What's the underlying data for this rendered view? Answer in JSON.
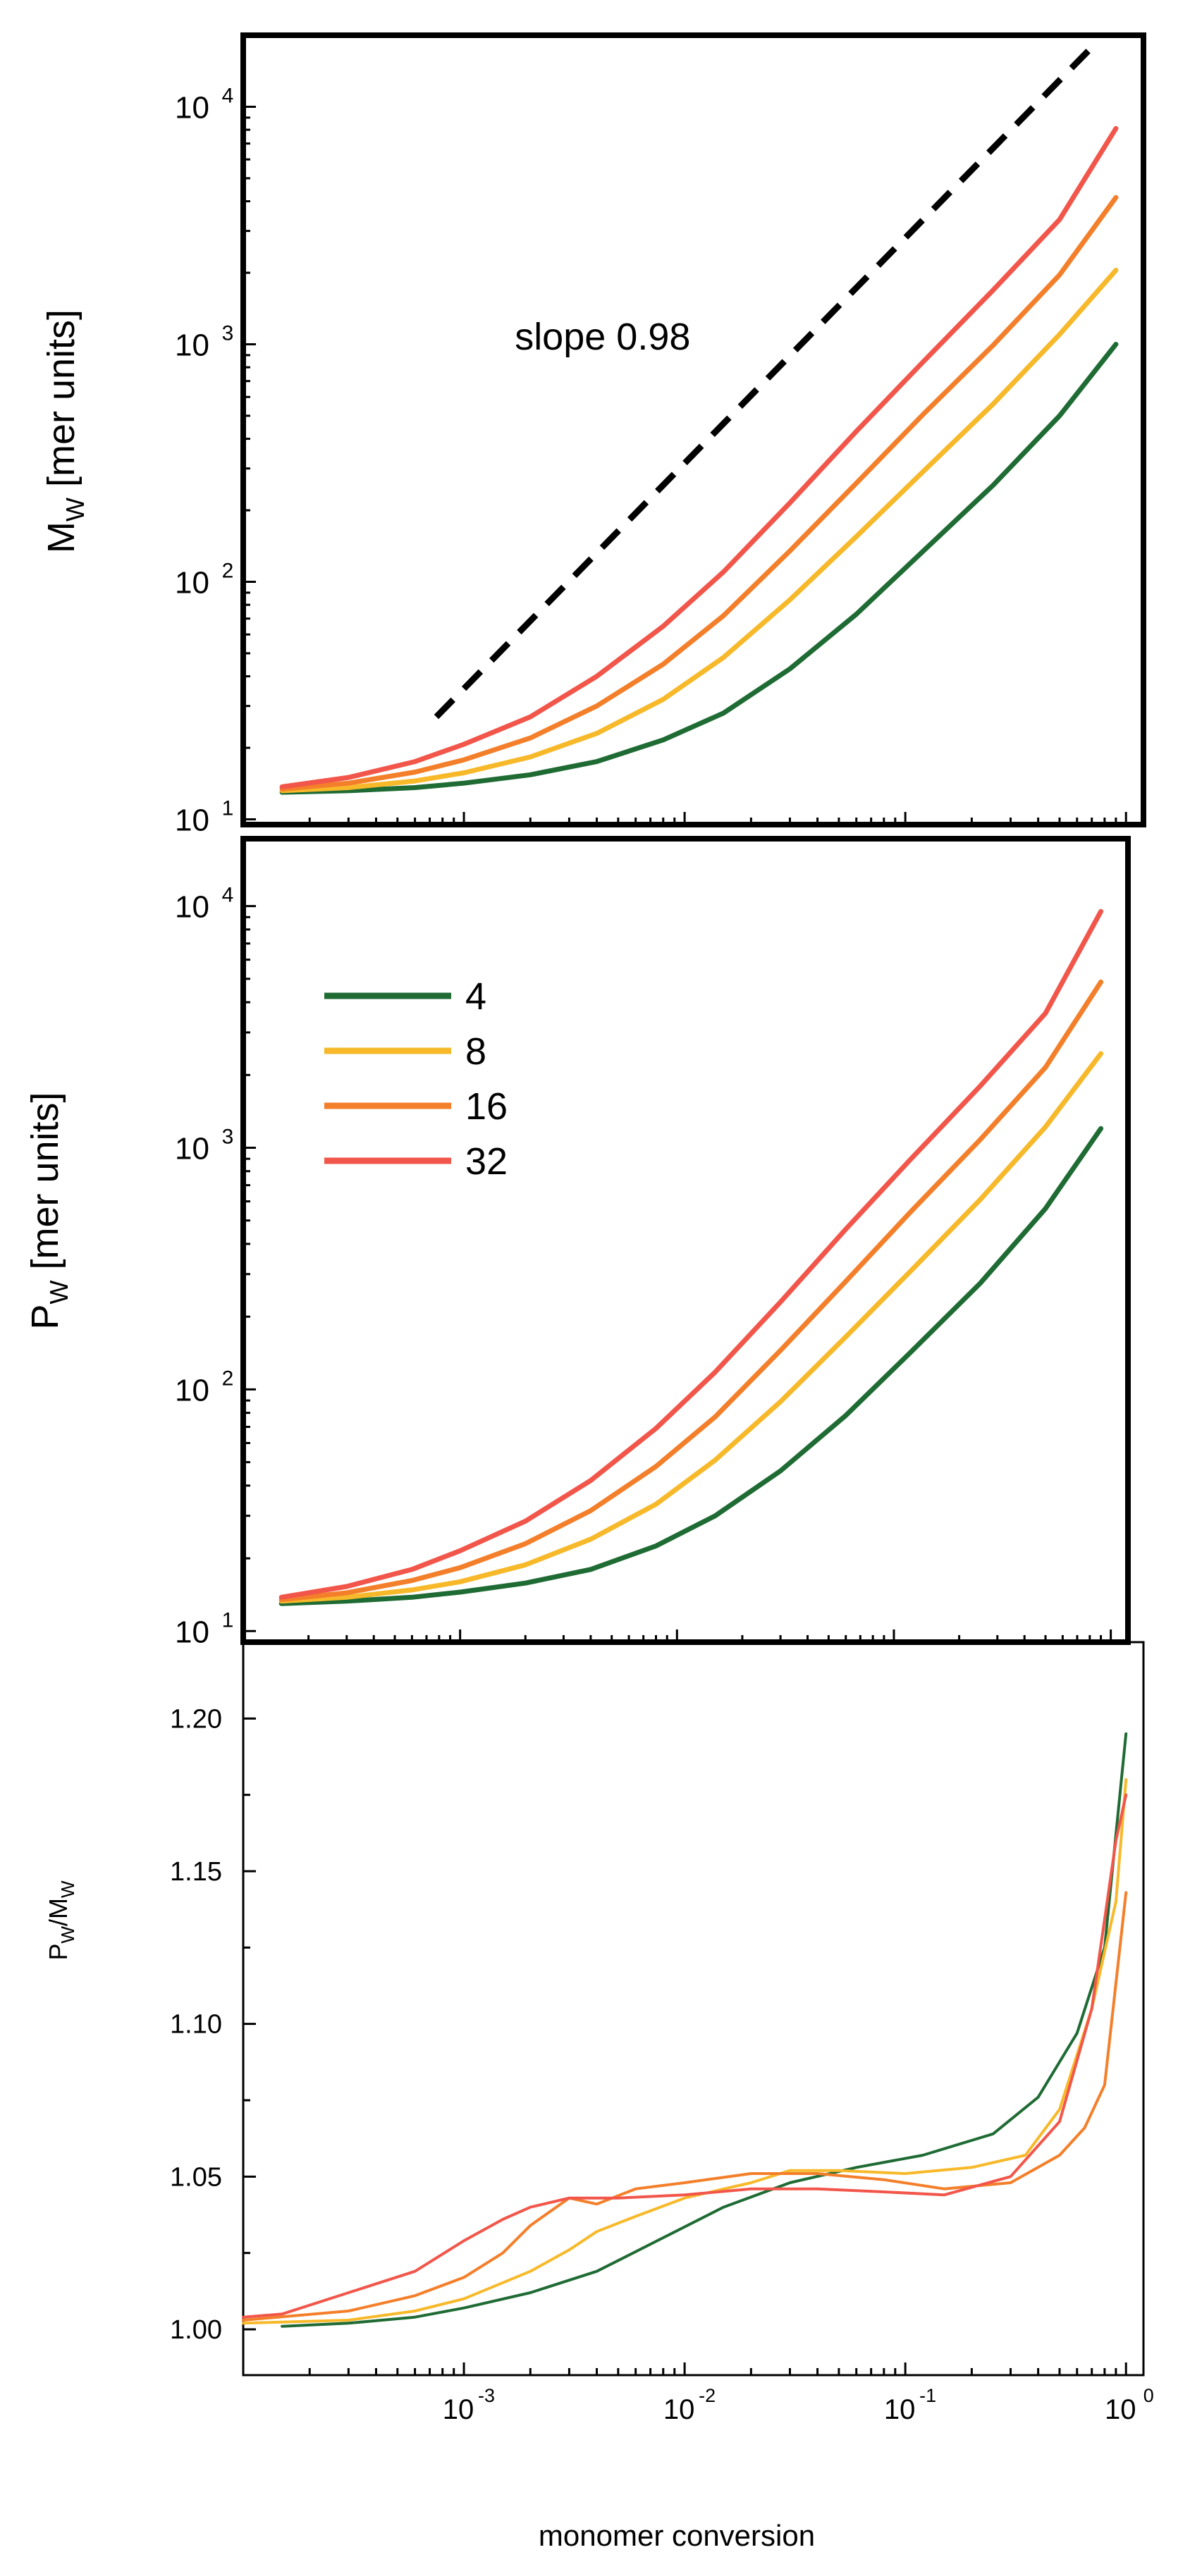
{
  "colors": {
    "n4": "#1f6b34",
    "n8": "#f7b92a",
    "n16": "#f47f2a",
    "n32": "#f2564a",
    "slope_line": "#000000",
    "frame": "#000000"
  },
  "legend": {
    "entries": [
      {
        "label": "4",
        "color_key": "n4"
      },
      {
        "label": "8",
        "color_key": "n8"
      },
      {
        "label": "16",
        "color_key": "n16"
      },
      {
        "label": "32",
        "color_key": "n32"
      }
    ]
  },
  "x_axis": {
    "title": "monomer conversion",
    "ticks": [
      {
        "base": "10",
        "exp": "-3",
        "value": 0.001
      },
      {
        "base": "10",
        "exp": "-2",
        "value": 0.01
      },
      {
        "base": "10",
        "exp": "-1",
        "value": 0.1
      },
      {
        "base": "10",
        "exp": "0",
        "value": 1
      }
    ]
  },
  "chart_data": [
    {
      "type": "line",
      "id": "mw",
      "title": "",
      "ylabel": {
        "main": "M",
        "sub": "W",
        "rest": " [mer units]"
      },
      "xlabel": "monomer conversion",
      "xscale": "log",
      "yscale": "log",
      "xlim": [
        0.0001,
        1.2
      ],
      "ylim": [
        9.5,
        20000
      ],
      "yticks": [
        {
          "base": "10",
          "exp": "1",
          "value": 10
        },
        {
          "base": "10",
          "exp": "2",
          "value": 100
        },
        {
          "base": "10",
          "exp": "3",
          "value": 1000
        },
        {
          "base": "10",
          "exp": "4",
          "value": 10000
        }
      ],
      "x": [
        0.00015,
        0.0003,
        0.0006,
        0.001,
        0.002,
        0.004,
        0.008,
        0.015,
        0.03,
        0.06,
        0.12,
        0.25,
        0.5,
        0.9
      ],
      "series": [
        {
          "name": "4",
          "color_key": "n4",
          "values": [
            13.0,
            13.2,
            13.6,
            14.2,
            15.4,
            17.5,
            21.6,
            28.0,
            43.0,
            73.0,
            134,
            255,
            500,
            1000
          ]
        },
        {
          "name": "8",
          "color_key": "n8",
          "values": [
            13.2,
            13.6,
            14.5,
            15.7,
            18.3,
            23.0,
            32.0,
            48.0,
            84.0,
            155,
            290,
            560,
            1100,
            2050
          ]
        },
        {
          "name": "16",
          "color_key": "n16",
          "values": [
            13.4,
            14.2,
            15.8,
            17.8,
            22.0,
            30.0,
            45.0,
            72.0,
            135,
            260,
            505,
            990,
            1960,
            4150
          ]
        },
        {
          "name": "32",
          "color_key": "n32",
          "values": [
            13.7,
            15.0,
            17.5,
            20.7,
            27.0,
            40.0,
            65.0,
            110,
            215,
            430,
            840,
            1690,
            3350,
            8100
          ]
        }
      ],
      "annotations": [
        {
          "text": "slope 0.98",
          "type": "text",
          "x": 0.0017,
          "y": 950
        },
        {
          "type": "dashed-line",
          "label": "slope 0.98",
          "x": [
            0.00075,
            0.75
          ],
          "y": [
            27,
            19000
          ]
        }
      ]
    },
    {
      "type": "line",
      "id": "pw",
      "title": "",
      "ylabel": {
        "main": "P",
        "sub": "W",
        "rest": " [mer units]"
      },
      "xlabel": "monomer conversion",
      "xscale": "log",
      "yscale": "log",
      "xlim": [
        0.0001,
        1.2
      ],
      "ylim": [
        9.0,
        19000
      ],
      "yticks": [
        {
          "base": "10",
          "exp": "1",
          "value": 10
        },
        {
          "base": "10",
          "exp": "2",
          "value": 100
        },
        {
          "base": "10",
          "exp": "3",
          "value": 1000
        },
        {
          "base": "10",
          "exp": "4",
          "value": 10000
        }
      ],
      "x": [
        0.00015,
        0.0003,
        0.0006,
        0.001,
        0.002,
        0.004,
        0.008,
        0.015,
        0.03,
        0.06,
        0.12,
        0.25,
        0.5,
        0.9
      ],
      "series": [
        {
          "name": "4",
          "color_key": "n4",
          "values": [
            13.0,
            13.3,
            13.8,
            14.5,
            15.8,
            18.0,
            22.5,
            30.0,
            46.0,
            78.0,
            143,
            275,
            560,
            1200
          ]
        },
        {
          "name": "8",
          "color_key": "n8",
          "values": [
            13.3,
            13.8,
            14.8,
            16.0,
            18.8,
            24.0,
            33.5,
            51.0,
            89.0,
            165,
            310,
            610,
            1220,
            2450
          ]
        },
        {
          "name": "16",
          "color_key": "n16",
          "values": [
            13.5,
            14.4,
            16.2,
            18.3,
            23.0,
            31.5,
            48.0,
            77.0,
            145,
            280,
            545,
            1080,
            2150,
            4850
          ]
        },
        {
          "name": "32",
          "color_key": "n32",
          "values": [
            13.8,
            15.3,
            18.0,
            21.5,
            28.5,
            42.0,
            69.0,
            118,
            230,
            460,
            900,
            1800,
            3600,
            9500
          ]
        }
      ],
      "annotations": []
    },
    {
      "type": "line",
      "id": "ratio",
      "title": "",
      "ylabel": {
        "main": "P",
        "sub": "W",
        "rest": "/M",
        "sub2": "W"
      },
      "xlabel": "monomer conversion",
      "xscale": "log",
      "yscale": "linear",
      "xlim": [
        0.0001,
        1.2
      ],
      "ylim": [
        0.985,
        1.225
      ],
      "yticks": [
        {
          "label": "1.00",
          "value": 1.0
        },
        {
          "label": "1.05",
          "value": 1.05
        },
        {
          "label": "1.10",
          "value": 1.1
        },
        {
          "label": "1.15",
          "value": 1.15
        },
        {
          "label": "1.20",
          "value": 1.2
        }
      ],
      "series": [
        {
          "name": "4",
          "color_key": "n4",
          "x": [
            0.00015,
            0.0003,
            0.0006,
            0.001,
            0.002,
            0.004,
            0.008,
            0.015,
            0.03,
            0.06,
            0.12,
            0.25,
            0.4,
            0.6,
            0.8,
            1.0
          ],
          "values": [
            1.001,
            1.002,
            1.004,
            1.007,
            1.012,
            1.019,
            1.03,
            1.04,
            1.048,
            1.053,
            1.057,
            1.064,
            1.076,
            1.097,
            1.125,
            1.195
          ]
        },
        {
          "name": "8",
          "color_key": "n8",
          "x": [
            0.0001,
            0.0003,
            0.0006,
            0.001,
            0.002,
            0.003,
            0.004,
            0.006,
            0.01,
            0.02,
            0.03,
            0.05,
            0.1,
            0.2,
            0.35,
            0.5,
            0.7,
            0.9,
            1.0
          ],
          "values": [
            1.002,
            1.003,
            1.006,
            1.01,
            1.019,
            1.026,
            1.032,
            1.037,
            1.043,
            1.048,
            1.052,
            1.052,
            1.051,
            1.053,
            1.057,
            1.072,
            1.105,
            1.14,
            1.18
          ]
        },
        {
          "name": "16",
          "color_key": "n16",
          "x": [
            0.0001,
            0.0003,
            0.0006,
            0.001,
            0.0015,
            0.002,
            0.003,
            0.004,
            0.006,
            0.01,
            0.02,
            0.04,
            0.08,
            0.15,
            0.3,
            0.5,
            0.65,
            0.8,
            1.0
          ],
          "values": [
            1.003,
            1.006,
            1.011,
            1.017,
            1.025,
            1.034,
            1.043,
            1.041,
            1.046,
            1.048,
            1.051,
            1.051,
            1.049,
            1.046,
            1.048,
            1.057,
            1.066,
            1.08,
            1.143
          ]
        },
        {
          "name": "32",
          "color_key": "n32",
          "x": [
            0.0001,
            0.00015,
            0.0003,
            0.0006,
            0.001,
            0.0015,
            0.002,
            0.003,
            0.005,
            0.01,
            0.02,
            0.04,
            0.08,
            0.15,
            0.3,
            0.5,
            0.7,
            0.9,
            1.0
          ],
          "values": [
            1.004,
            1.005,
            1.012,
            1.019,
            1.029,
            1.036,
            1.04,
            1.043,
            1.043,
            1.044,
            1.046,
            1.046,
            1.045,
            1.044,
            1.05,
            1.068,
            1.105,
            1.16,
            1.175
          ]
        }
      ],
      "annotations": []
    }
  ]
}
